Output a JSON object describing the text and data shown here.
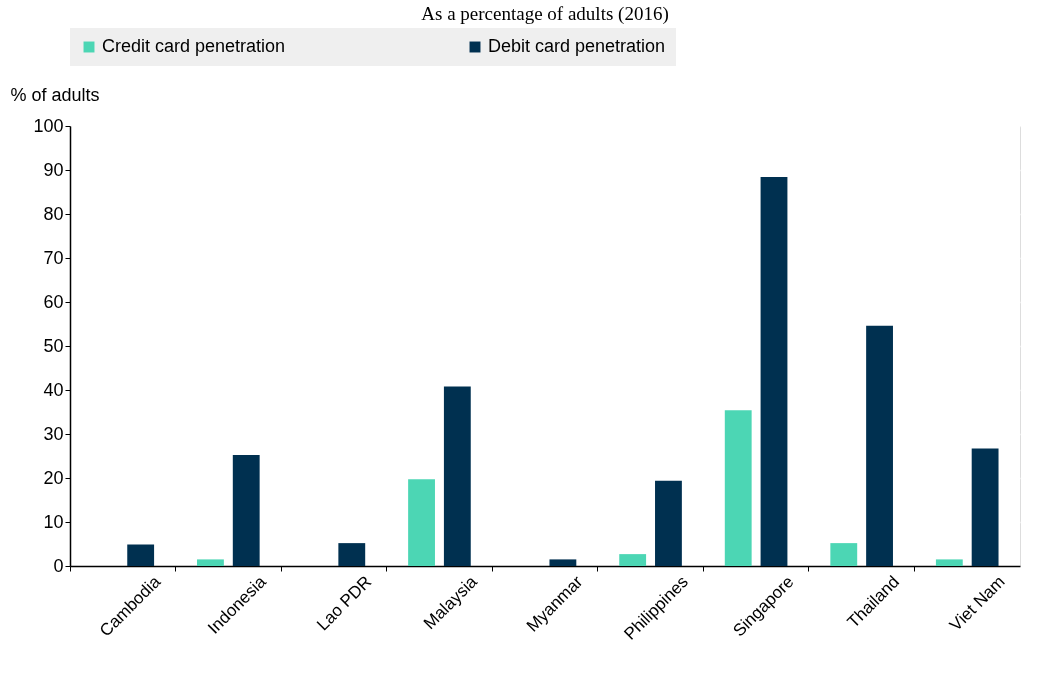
{
  "chart_data": {
    "type": "bar",
    "title": "As a percentage of adults (2016)",
    "ylabel": "%  of adults",
    "categories": [
      "Cambodia",
      "Indonesia",
      "Lao PDR",
      "Malaysia",
      "Myanmar",
      "Philippines",
      "Singapore",
      "Thailand",
      "Viet Nam"
    ],
    "series": [
      {
        "name": "Credit card penetration",
        "color": "#4cd6b4",
        "values": [
          null,
          1.5,
          null,
          19.7,
          null,
          2.7,
          35.4,
          5.2,
          1.5
        ]
      },
      {
        "name": "Debit card penetration",
        "color": "#003050",
        "values": [
          4.9,
          25.2,
          5.2,
          40.8,
          1.5,
          19.4,
          88.4,
          54.6,
          26.7
        ]
      }
    ],
    "ylim": [
      0,
      100
    ],
    "yticks": [
      0,
      10,
      20,
      30,
      40,
      50,
      60,
      70,
      80,
      90,
      100
    ],
    "grid": true,
    "legend": "top"
  }
}
